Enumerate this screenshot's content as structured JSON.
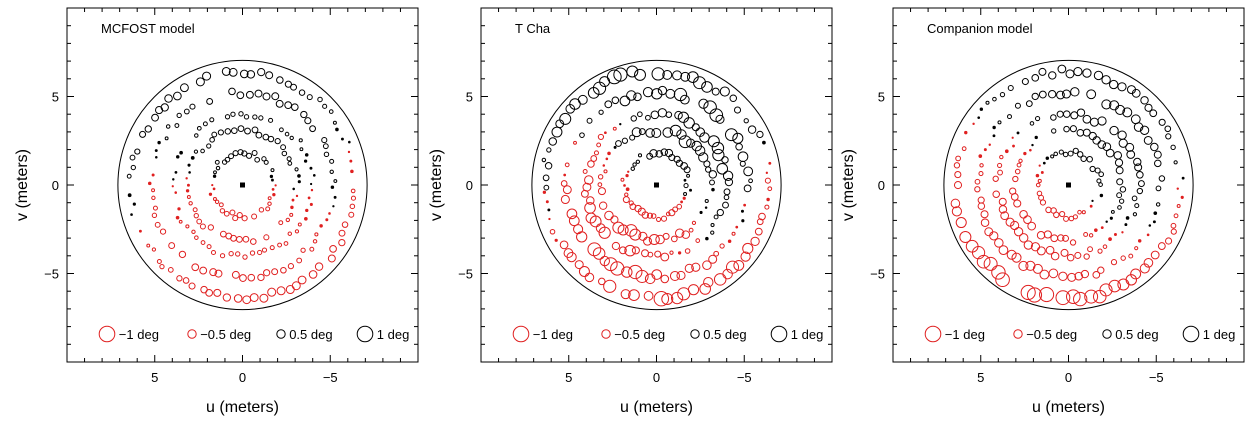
{
  "chart_data": [
    {
      "type": "scatter",
      "title": "MCFOST model",
      "xlabel": "u (meters)",
      "ylabel": "v (meters)",
      "xlim": [
        10,
        -10
      ],
      "ylim": [
        -10,
        10
      ],
      "xticks": [
        5,
        0,
        -5
      ],
      "yticks": [
        5,
        0,
        -5
      ],
      "tick_labels": {
        "x": [
          "5",
          "0",
          "−5"
        ],
        "y": [
          "5",
          "0",
          "−5"
        ]
      },
      "legend": [
        "−1 deg",
        "−0.5 deg",
        "0.5 deg",
        "1 deg"
      ],
      "legend_position": "bottom",
      "aperture_radius_m": 7.1,
      "rings": [
        {
          "radius": 1.8,
          "mode": "mcfost_inner"
        },
        {
          "radius": 3.1,
          "mode": "mcfost_mid"
        },
        {
          "radius": 4.0,
          "mode": "mcfost_mid2"
        },
        {
          "radius": 5.2,
          "mode": "mcfost_outer"
        },
        {
          "radius": 6.4,
          "mode": "mcfost_edge"
        }
      ],
      "center_point": [
        0,
        0
      ]
    },
    {
      "type": "scatter",
      "title": "T Cha",
      "xlabel": "u (meters)",
      "ylabel": "v (meters)",
      "xlim": [
        10,
        -10
      ],
      "ylim": [
        -10,
        10
      ],
      "xticks": [
        5,
        0,
        -5
      ],
      "yticks": [
        5,
        0,
        -5
      ],
      "tick_labels": {
        "x": [
          "5",
          "0",
          "−5"
        ],
        "y": [
          "5",
          "0",
          "−5"
        ]
      },
      "legend": [
        "−1 deg",
        "−0.5 deg",
        "0.5 deg",
        "1 deg"
      ],
      "legend_position": "bottom",
      "aperture_radius_m": 7.1,
      "rings": [
        {
          "radius": 1.8,
          "mode": "tcha_inner"
        },
        {
          "radius": 3.1,
          "mode": "tcha_mid"
        },
        {
          "radius": 4.0,
          "mode": "tcha_mid2"
        },
        {
          "radius": 5.2,
          "mode": "tcha_outer"
        },
        {
          "radius": 6.4,
          "mode": "tcha_edge"
        }
      ],
      "center_point": [
        0,
        0
      ]
    },
    {
      "type": "scatter",
      "title": "Companion model",
      "xlabel": "u (meters)",
      "ylabel": "v (meters)",
      "xlim": [
        10,
        -10
      ],
      "ylim": [
        -10,
        10
      ],
      "xticks": [
        5,
        0,
        -5
      ],
      "yticks": [
        5,
        0,
        -5
      ],
      "tick_labels": {
        "x": [
          "5",
          "0",
          "−5"
        ],
        "y": [
          "5",
          "0",
          "−5"
        ]
      },
      "legend": [
        "−1 deg",
        "−0.5 deg",
        "0.5 deg",
        "1 deg"
      ],
      "legend_position": "bottom",
      "aperture_radius_m": 7.1,
      "rings": [
        {
          "radius": 1.8,
          "mode": "comp_inner"
        },
        {
          "radius": 3.1,
          "mode": "comp_mid"
        },
        {
          "radius": 4.0,
          "mode": "comp_mid2"
        },
        {
          "radius": 5.2,
          "mode": "comp_outer"
        },
        {
          "radius": 6.4,
          "mode": "comp_edge"
        }
      ],
      "center_point": [
        0,
        0
      ]
    }
  ],
  "colors": {
    "negative": "#e02020",
    "positive": "#000000"
  },
  "legend_values_deg": [
    -1,
    -0.5,
    0.5,
    1
  ]
}
